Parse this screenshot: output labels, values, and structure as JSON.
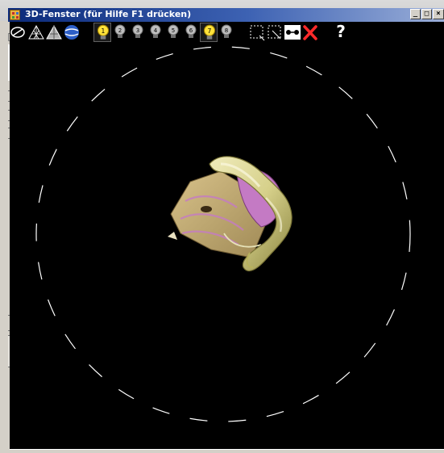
{
  "window": {
    "title": "3D-Fenster (für Hilfe F1 drücken)",
    "minimize_label": "_",
    "maximize_label": "□",
    "close_label": "×"
  },
  "side_panel": {
    "close_label": "×"
  },
  "toolbar": {
    "help_label": "?",
    "buttons": [
      "view-mode-icon",
      "wireframe-icon",
      "shaded-icon",
      "texture-sphere-icon",
      "light-1-icon",
      "light-2-icon",
      "light-3-icon",
      "light-4-icon",
      "light-5-icon",
      "light-6-icon",
      "light-7-icon",
      "light-8-icon",
      "select-region-icon",
      "select-region-alt-icon",
      "toggle-dots-icon",
      "delete-icon",
      "help-icon"
    ]
  },
  "colors": {
    "viewport_background": "#000000",
    "title_gradient_start": "#0b2a7a",
    "title_gradient_end": "#9aaed8",
    "model_tan": "#c8b27a",
    "model_yellow": "#e8e4a8",
    "model_pink": "#c47ac4",
    "rotation_circle": "#ffffff"
  }
}
